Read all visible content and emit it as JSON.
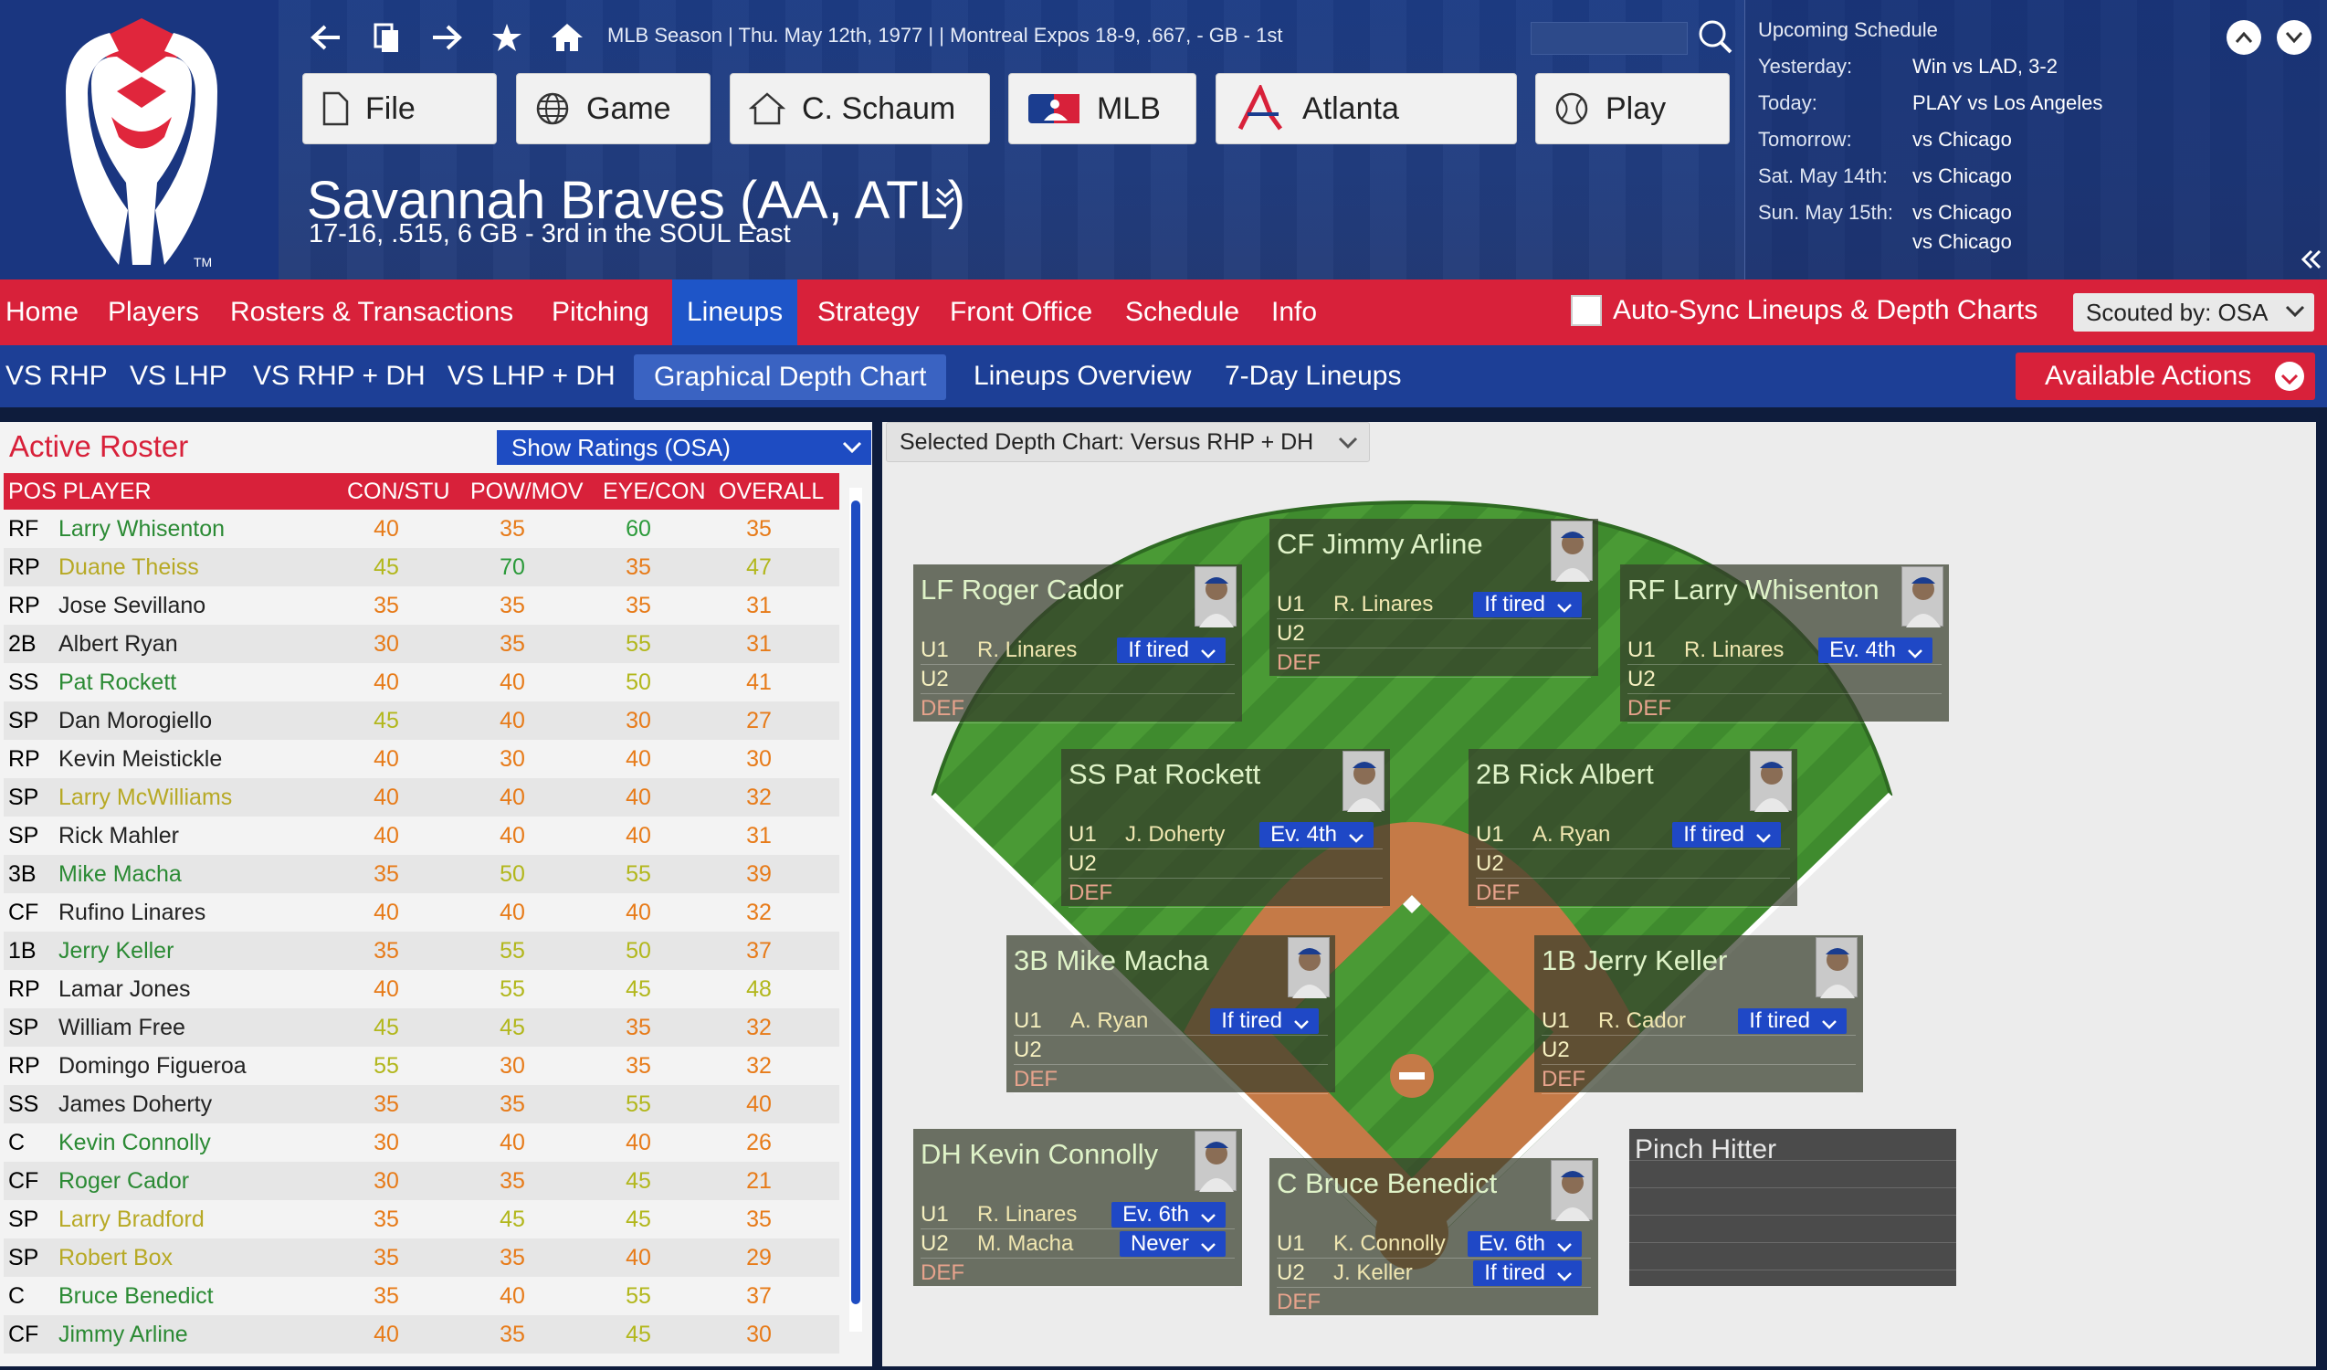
{
  "header": {
    "context": "MLB Season  |  Thu. May 12th, 1977  |      |  Montreal Expos   18-9, .667, - GB - 1st",
    "buttons": [
      "File",
      "Game",
      "C. Schaum",
      "MLB",
      "Atlanta",
      "Play"
    ],
    "team_name": "Savannah Braves (AA, ATL)",
    "team_record": "17-16, .515, 6 GB - 3rd in the SOUL East"
  },
  "schedule": {
    "title": "Upcoming Schedule",
    "rows": [
      {
        "day": "Yesterday:",
        "game": "Win vs LAD, 3-2"
      },
      {
        "day": "Today:",
        "game": "PLAY vs Los Angeles"
      },
      {
        "day": "Tomorrow:",
        "game": "vs Chicago"
      },
      {
        "day": "Sat. May 14th:",
        "game": "vs Chicago"
      },
      {
        "day": "Sun. May 15th:",
        "game": "vs Chicago"
      },
      {
        "day": "",
        "game": "vs Chicago"
      }
    ]
  },
  "menu": [
    "Home",
    "Players",
    "Rosters & Transactions",
    "Pitching",
    "Lineups",
    "Strategy",
    "Front Office",
    "Schedule",
    "Info"
  ],
  "autosync_label": "Auto-Sync Lineups & Depth Charts",
  "scouted_by": "Scouted by: OSA",
  "submenu": [
    "VS RHP",
    "VS LHP",
    "VS RHP + DH",
    "VS LHP + DH",
    "Graphical Depth Chart",
    "Lineups Overview",
    "7-Day Lineups"
  ],
  "available_actions": "Available Actions",
  "roster": {
    "title": "Active Roster",
    "ratings_select": "Show Ratings (OSA)",
    "columns": [
      "POS PLAYER",
      "CON/STU",
      "POW/MOV",
      "EYE/CON",
      "OVERALL"
    ],
    "rows": [
      {
        "pos": "RF",
        "name": "Larry Whisenton",
        "c": "pGr",
        "v": [
          "40",
          "35",
          "60",
          "35"
        ],
        "vc": [
          "nOr",
          "nOr",
          "nGr",
          "nOr"
        ]
      },
      {
        "pos": "RP",
        "name": "Duane Theiss",
        "c": "pYl",
        "v": [
          "45",
          "70",
          "35",
          "47"
        ],
        "vc": [
          "nYl",
          "nGr",
          "nOr",
          "nYl"
        ]
      },
      {
        "pos": "RP",
        "name": "Jose Sevillano",
        "c": "pBk",
        "v": [
          "35",
          "35",
          "35",
          "31"
        ],
        "vc": [
          "nOr",
          "nOr",
          "nOr",
          "nOr"
        ]
      },
      {
        "pos": "2B",
        "name": "Albert Ryan",
        "c": "pBk",
        "v": [
          "30",
          "35",
          "55",
          "31"
        ],
        "vc": [
          "nOr",
          "nOr",
          "nYl",
          "nOr"
        ]
      },
      {
        "pos": "SS",
        "name": "Pat Rockett",
        "c": "pGr",
        "v": [
          "40",
          "40",
          "50",
          "41"
        ],
        "vc": [
          "nOr",
          "nOr",
          "nYl",
          "nOr"
        ]
      },
      {
        "pos": "SP",
        "name": "Dan Morogiello",
        "c": "pBk",
        "v": [
          "45",
          "40",
          "30",
          "27"
        ],
        "vc": [
          "nYl",
          "nOr",
          "nOr",
          "nOr"
        ]
      },
      {
        "pos": "RP",
        "name": "Kevin Meistickle",
        "c": "pBk",
        "v": [
          "40",
          "30",
          "40",
          "30"
        ],
        "vc": [
          "nOr",
          "nOr",
          "nOr",
          "nOr"
        ]
      },
      {
        "pos": "SP",
        "name": "Larry McWilliams",
        "c": "pYl",
        "v": [
          "40",
          "40",
          "40",
          "32"
        ],
        "vc": [
          "nOr",
          "nOr",
          "nOr",
          "nOr"
        ]
      },
      {
        "pos": "SP",
        "name": "Rick Mahler",
        "c": "pBk",
        "v": [
          "40",
          "40",
          "40",
          "31"
        ],
        "vc": [
          "nOr",
          "nOr",
          "nOr",
          "nOr"
        ]
      },
      {
        "pos": "3B",
        "name": "Mike Macha",
        "c": "pGr",
        "v": [
          "35",
          "50",
          "55",
          "39"
        ],
        "vc": [
          "nOr",
          "nYl",
          "nYl",
          "nOr"
        ]
      },
      {
        "pos": "CF",
        "name": "Rufino Linares",
        "c": "pBk",
        "v": [
          "40",
          "40",
          "40",
          "32"
        ],
        "vc": [
          "nOr",
          "nOr",
          "nOr",
          "nOr"
        ]
      },
      {
        "pos": "1B",
        "name": "Jerry Keller",
        "c": "pGr",
        "v": [
          "35",
          "55",
          "50",
          "37"
        ],
        "vc": [
          "nOr",
          "nYl",
          "nYl",
          "nOr"
        ]
      },
      {
        "pos": "RP",
        "name": "Lamar Jones",
        "c": "pBk",
        "v": [
          "40",
          "55",
          "45",
          "48"
        ],
        "vc": [
          "nOr",
          "nYl",
          "nYl",
          "nYl"
        ]
      },
      {
        "pos": "SP",
        "name": "William Free",
        "c": "pBk",
        "v": [
          "45",
          "45",
          "35",
          "32"
        ],
        "vc": [
          "nYl",
          "nYl",
          "nOr",
          "nOr"
        ]
      },
      {
        "pos": "RP",
        "name": "Domingo Figueroa",
        "c": "pBk",
        "v": [
          "55",
          "30",
          "35",
          "32"
        ],
        "vc": [
          "nYl",
          "nOr",
          "nOr",
          "nOr"
        ]
      },
      {
        "pos": "SS",
        "name": "James Doherty",
        "c": "pBk",
        "v": [
          "35",
          "35",
          "55",
          "40"
        ],
        "vc": [
          "nOr",
          "nOr",
          "nYl",
          "nOr"
        ]
      },
      {
        "pos": "C",
        "name": "Kevin Connolly",
        "c": "pGr",
        "v": [
          "30",
          "40",
          "40",
          "26"
        ],
        "vc": [
          "nOr",
          "nOr",
          "nOr",
          "nOr"
        ]
      },
      {
        "pos": "CF",
        "name": "Roger Cador",
        "c": "pGr",
        "v": [
          "30",
          "35",
          "45",
          "21"
        ],
        "vc": [
          "nOr",
          "nOr",
          "nYl",
          "nOr"
        ]
      },
      {
        "pos": "SP",
        "name": "Larry Bradford",
        "c": "pYl",
        "v": [
          "35",
          "45",
          "45",
          "35"
        ],
        "vc": [
          "nOr",
          "nYl",
          "nYl",
          "nOr"
        ]
      },
      {
        "pos": "SP",
        "name": "Robert Box",
        "c": "pYl",
        "v": [
          "35",
          "35",
          "40",
          "29"
        ],
        "vc": [
          "nOr",
          "nOr",
          "nOr",
          "nOr"
        ]
      },
      {
        "pos": "C",
        "name": "Bruce Benedict",
        "c": "pGr",
        "v": [
          "35",
          "40",
          "55",
          "37"
        ],
        "vc": [
          "nOr",
          "nOr",
          "nYl",
          "nOr"
        ]
      },
      {
        "pos": "CF",
        "name": "Jimmy Arline",
        "c": "pGr",
        "v": [
          "40",
          "35",
          "45",
          "30"
        ],
        "vc": [
          "nOr",
          "nOr",
          "nYl",
          "nOr"
        ]
      }
    ]
  },
  "depth_chart": {
    "selector": "Selected Depth Chart: Versus RHP + DH",
    "pinch_hitter": "Pinch Hitter",
    "cards": [
      {
        "id": "lf",
        "title": "LF   Roger Cador",
        "u1": "R. Linares",
        "u1dd": "If tired",
        "u2": "",
        "u2dd": ""
      },
      {
        "id": "cf",
        "title": "CF   Jimmy Arline",
        "u1": "R. Linares",
        "u1dd": "If tired",
        "u2": "",
        "u2dd": ""
      },
      {
        "id": "rf",
        "title": "RF   Larry Whisenton",
        "u1": "R. Linares",
        "u1dd": "Ev. 4th",
        "u2": "",
        "u2dd": ""
      },
      {
        "id": "ss",
        "title": "SS   Pat Rockett",
        "u1": "J. Doherty",
        "u1dd": "Ev. 4th",
        "u2": "",
        "u2dd": ""
      },
      {
        "id": "2b",
        "title": "2B   Rick Albert",
        "u1": "A. Ryan",
        "u1dd": "If tired",
        "u2": "",
        "u2dd": ""
      },
      {
        "id": "3b",
        "title": "3B   Mike Macha",
        "u1": "A. Ryan",
        "u1dd": "If tired",
        "u2": "",
        "u2dd": ""
      },
      {
        "id": "1b",
        "title": "1B   Jerry Keller",
        "u1": "R. Cador",
        "u1dd": "If tired",
        "u2": "",
        "u2dd": ""
      },
      {
        "id": "dh",
        "title": "DH   Kevin Connolly",
        "u1": "R. Linares",
        "u1dd": "Ev. 6th",
        "u2": "M. Macha",
        "u2dd": "Never"
      },
      {
        "id": "c",
        "title": "C    Bruce Benedict",
        "u1": "K. Connolly",
        "u1dd": "Ev. 6th",
        "u2": "J. Keller",
        "u2dd": "If tired"
      }
    ],
    "labels": {
      "u1": "U1",
      "u2": "U2",
      "def": "DEF"
    }
  }
}
